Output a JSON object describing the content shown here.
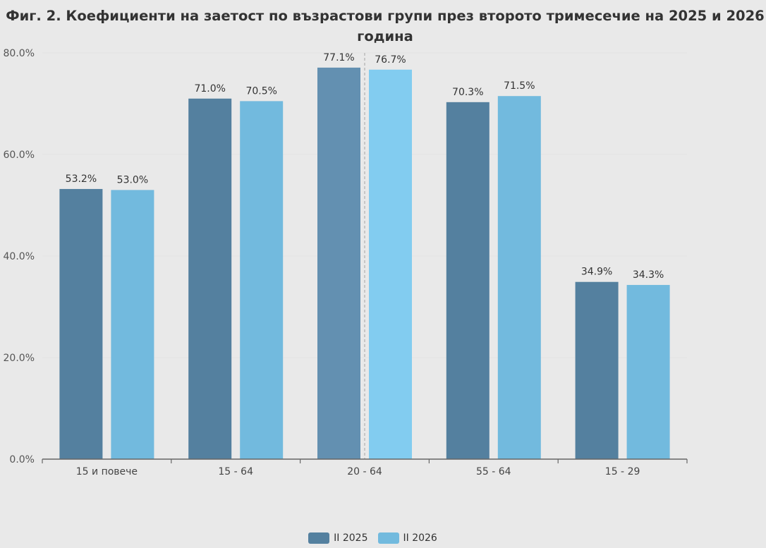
{
  "chart_data": {
    "type": "bar",
    "title": "Фиг. 2. Коефициенти на заетост по възрастови групи през второто тримесечие на 2025 и 2026 година",
    "title_lines": [
      "Фиг. 2. Коефициенти на заетост по възрастови групи през второто тримесечие на 2025 и 2026",
      "година"
    ],
    "categories": [
      "15 и повече",
      "15 - 64",
      "20 - 64",
      "55 - 64",
      "15 - 29"
    ],
    "series": [
      {
        "name": "II 2025",
        "color": "#54809f",
        "values": [
          53.2,
          71.0,
          77.1,
          70.3,
          34.9
        ]
      },
      {
        "name": "II 2026",
        "color": "#72bade",
        "values": [
          53.0,
          70.5,
          76.7,
          71.5,
          34.3
        ]
      }
    ],
    "value_labels": [
      [
        "53.2%",
        "71.0%",
        "77.1%",
        "70.3%",
        "34.9%"
      ],
      [
        "53.0%",
        "70.5%",
        "76.7%",
        "71.5%",
        "34.3%"
      ]
    ],
    "highlight_category_index": 2,
    "highlight_colors": [
      "#6390b1",
      "#82ccf0"
    ],
    "yticks": [
      "0.0%",
      "20.0%",
      "40.0%",
      "60.0%",
      "80.0%"
    ],
    "ytick_values": [
      0,
      20,
      40,
      60,
      80
    ],
    "ylim": [
      0,
      80
    ],
    "xlabel": "",
    "ylabel": "",
    "legend_position": "bottom"
  }
}
